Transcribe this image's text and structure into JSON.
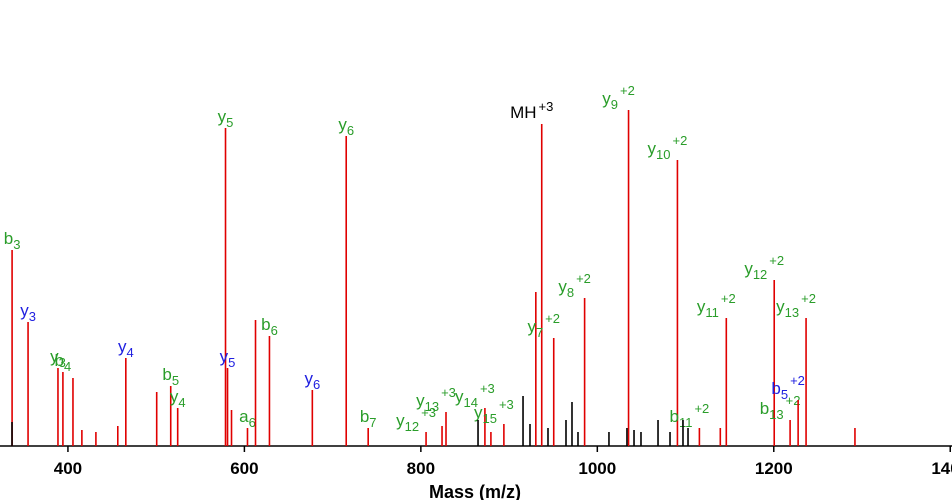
{
  "chart_data": {
    "type": "spectrum",
    "x_label": "Mass (m/z)",
    "xlim": [
      323,
      1402
    ],
    "xticks": [
      400,
      600,
      800,
      1000,
      1200,
      1400
    ],
    "ylim": [
      0,
      446
    ],
    "series": [
      {
        "color": "#e00000",
        "x": [
          336.7,
          354.8,
          388.7,
          394.3,
          405.7,
          415.8,
          431.7,
          456.5,
          465.6,
          500.6,
          516.5,
          524.4,
          578.6,
          580.9,
          585.4,
          603.5,
          612.6,
          628.4,
          677.0,
          715.4,
          740.3,
          805.9,
          824.0,
          828.5,
          872.6,
          879.4,
          894.1,
          930.3,
          937.0,
          950.6,
          985.6,
          1035.4,
          1090.8,
          1115.7,
          1139.4,
          1146.2,
          1200.5,
          1218.5,
          1227.6,
          1236.6,
          1292.0
        ],
        "values": [
          196,
          124,
          78,
          74,
          68,
          16,
          14,
          20,
          88,
          54,
          60,
          38,
          318,
          78,
          36,
          18,
          126,
          110,
          56,
          310,
          18,
          14,
          20,
          34,
          38,
          14,
          22,
          154,
          322,
          108,
          148,
          336,
          286,
          18,
          18,
          128,
          166,
          26,
          46,
          128,
          18
        ],
        "labels": [
          {
            "ion": "b",
            "sub": "3",
            "color": "#2a9d2a"
          },
          {
            "ion": "y",
            "sub": "3",
            "color": "#2020e0"
          },
          {
            "ion": "y",
            "sub": "3",
            "color": "#2a9d2a"
          },
          {
            "ion": "b",
            "sub": "4",
            "color": "#2a9d2a"
          },
          null,
          null,
          null,
          null,
          {
            "ion": "y",
            "sub": "4",
            "color": "#2020e0"
          },
          null,
          {
            "ion": "b",
            "sub": "5",
            "color": "#2a9d2a"
          },
          {
            "ion": "y",
            "sub": "4",
            "color": "#2a9d2a"
          },
          {
            "ion": "y",
            "sub": "5",
            "color": "#2a9d2a"
          },
          {
            "ion": "y",
            "sub": "5",
            "color": "#2020e0"
          },
          null,
          {
            "ion": "a",
            "sub": "6",
            "color": "#2a9d2a"
          },
          null,
          {
            "ion": "b",
            "sub": "6",
            "color": "#2a9d2a"
          },
          {
            "ion": "y",
            "sub": "6",
            "color": "#2020e0"
          },
          {
            "ion": "y",
            "sub": "6",
            "color": "#2a9d2a"
          },
          {
            "ion": "b",
            "sub": "7",
            "color": "#2a9d2a"
          },
          {
            "ion": "y",
            "sub": "12",
            "sup": "+3",
            "color": "#2a9d2a"
          },
          null,
          {
            "ion": "y",
            "sub": "13",
            "sup": "+3",
            "color": "#2a9d2a"
          },
          {
            "ion": "y",
            "sub": "14",
            "sup": "+3",
            "color": "#2a9d2a"
          },
          null,
          {
            "ion": "y",
            "sub": "15",
            "sup": "+3",
            "color": "#2a9d2a"
          },
          null,
          {
            "ion": "MH",
            "sup": "+3",
            "color": "#000000"
          },
          {
            "ion": "y",
            "sub": "7",
            "sup": "+2",
            "color": "#2a9d2a"
          },
          {
            "ion": "y",
            "sub": "8",
            "sup": "+2",
            "color": "#2a9d2a"
          },
          {
            "ion": "y",
            "sub": "9",
            "sup": "+2",
            "color": "#2a9d2a"
          },
          {
            "ion": "y",
            "sub": "10",
            "sup": "+2",
            "color": "#2a9d2a"
          },
          {
            "ion": "b",
            "sub": "11",
            "sup": "+2",
            "color": "#2a9d2a"
          },
          null,
          {
            "ion": "y",
            "sub": "11",
            "sup": "+2",
            "color": "#2a9d2a"
          },
          {
            "ion": "y",
            "sub": "12",
            "sup": "+2",
            "color": "#2a9d2a"
          },
          {
            "ion": "b",
            "sub": "13",
            "sup": "+2",
            "color": "#2a9d2a"
          },
          {
            "ion": "b",
            "sub": "5",
            "sup": "+2",
            "color": "#2020e0"
          },
          {
            "ion": "y",
            "sub": "13",
            "sup": "+2",
            "color": "#2a9d2a"
          },
          null
        ]
      },
      {
        "color": "#000000",
        "x": [
          336.6,
          864.8,
          915.8,
          923.7,
          944.1,
          964.5,
          971.3,
          978.1,
          1013.2,
          1033.6,
          1041.6,
          1049.5,
          1068.8,
          1082.4,
          1097.1,
          1102.8
        ],
        "values": [
          24,
          26,
          50,
          22,
          18,
          26,
          44,
          14,
          14,
          18,
          16,
          14,
          26,
          14,
          26,
          18
        ]
      }
    ]
  }
}
